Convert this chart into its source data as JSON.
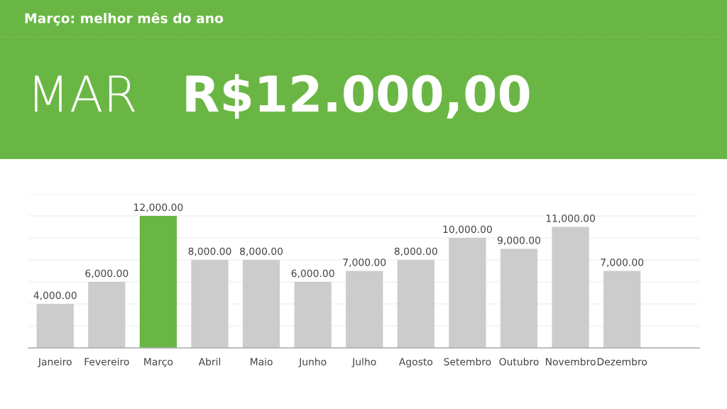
{
  "chart_data": {
    "type": "bar",
    "title": "Março: melhor mês do ano",
    "annotations": [
      "MAR",
      "R$12.000,00"
    ],
    "categories": [
      "Janeiro",
      "Fevereiro",
      "Março",
      "Abril",
      "Maio",
      "Junho",
      "Julho",
      "Agosto",
      "Setembro",
      "Outubro",
      "Novembro",
      "Dezembro"
    ],
    "values": [
      4000,
      6000,
      12000,
      8000,
      8000,
      6000,
      7000,
      8000,
      10000,
      9000,
      11000,
      7000
    ],
    "colors": [
      "#cccccc",
      "#cccccc",
      "#6ab645",
      "#cccccc",
      "#cccccc",
      "#cccccc",
      "#cccccc",
      "#cccccc",
      "#cccccc",
      "#cccccc",
      "#cccccc",
      "#cccccc"
    ],
    "value_labels": [
      "4,000.00",
      "6,000.00",
      "12,000.00",
      "8,000.00",
      "8,000.00",
      "6,000.00",
      "7,000.00",
      "8,000.00",
      "10,000.00",
      "9,000.00",
      "11,000.00",
      "7,000.00"
    ],
    "ylim": [
      0,
      14000
    ],
    "yticks": [
      {
        "value": 0,
        "label": null
      },
      {
        "value": 2000,
        "label": null
      },
      {
        "value": 4000,
        "label": null
      },
      {
        "value": 6000,
        "label": null
      },
      {
        "value": 8000,
        "label": null
      },
      {
        "value": 10000,
        "label": null
      },
      {
        "value": 12000,
        "label": null
      },
      {
        "value": 14000,
        "label": null
      }
    ],
    "grid": "y",
    "tick_labels": "x"
  }
}
